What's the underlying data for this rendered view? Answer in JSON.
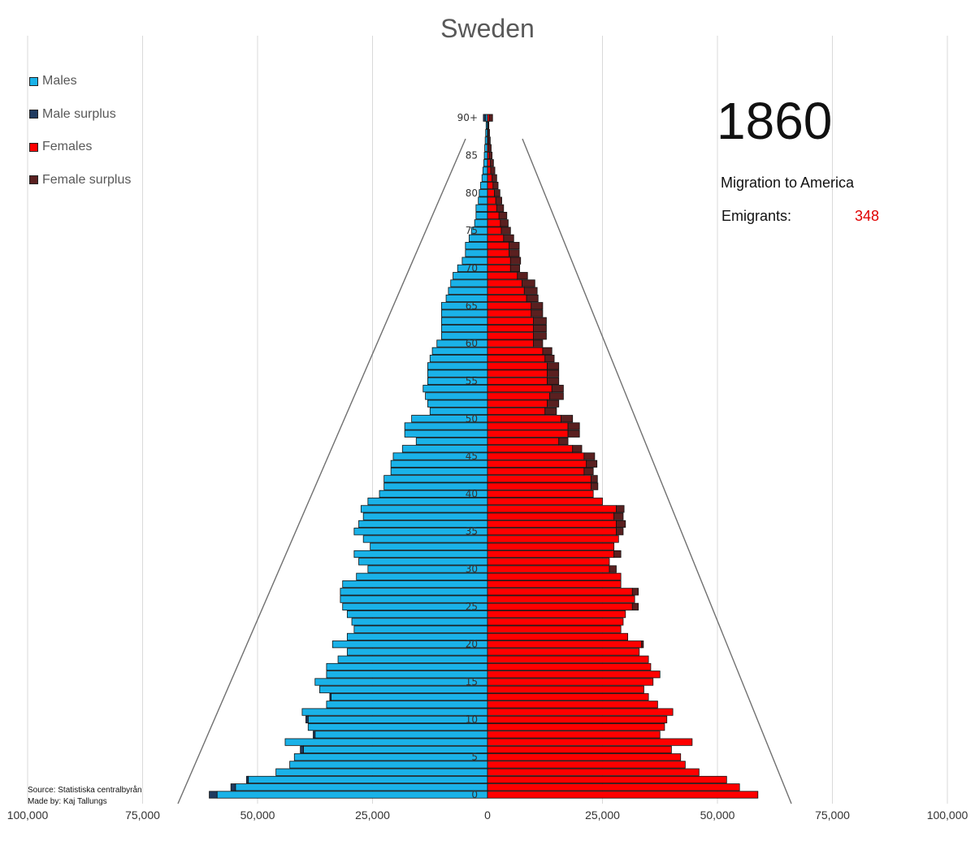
{
  "chart_data": {
    "type": "bar",
    "orientation": "horizontal",
    "title": "Sweden",
    "x_ticks": [
      "100,000",
      "75,000",
      "50,000",
      "25,000",
      "0",
      "25,000",
      "50,000",
      "75,000",
      "100,000"
    ],
    "xlim": [
      -100000,
      100000
    ],
    "y_tick_labels": [
      "0",
      "5",
      "10",
      "15",
      "20",
      "25",
      "30",
      "35",
      "40",
      "45",
      "50",
      "55",
      "60",
      "65",
      "70",
      "75",
      "80",
      "85",
      "90+"
    ],
    "age_groups": [
      "0",
      "1",
      "2",
      "3",
      "4",
      "5",
      "6",
      "7",
      "8",
      "9",
      "10",
      "11",
      "12",
      "13",
      "14",
      "15",
      "16",
      "17",
      "18",
      "19",
      "20",
      "21",
      "22",
      "23",
      "24",
      "25",
      "26",
      "27",
      "28",
      "29",
      "30",
      "31",
      "32",
      "33",
      "34",
      "35",
      "36",
      "37",
      "38",
      "39",
      "40",
      "41",
      "42",
      "43",
      "44",
      "45",
      "46",
      "47",
      "48",
      "49",
      "50",
      "51",
      "52",
      "53",
      "54",
      "55",
      "56",
      "57",
      "58",
      "59",
      "60",
      "61",
      "62",
      "63",
      "64",
      "65",
      "66",
      "67",
      "68",
      "69",
      "70",
      "71",
      "72",
      "73",
      "74",
      "75",
      "76",
      "77",
      "78",
      "79",
      "80",
      "81",
      "82",
      "83",
      "84",
      "85",
      "86",
      "87",
      "88",
      "89",
      "90+"
    ],
    "series": [
      {
        "name": "Males",
        "color": "#1ab2e8",
        "values": [
          58800,
          54800,
          52000,
          46000,
          43000,
          42000,
          40000,
          44000,
          37500,
          39000,
          39000,
          40300,
          35000,
          34000,
          36500,
          37500,
          35000,
          35000,
          32500,
          30500,
          33700,
          30500,
          29000,
          29500,
          30500,
          31500,
          32000,
          32000,
          31500,
          28500,
          26000,
          28000,
          29000,
          25500,
          27000,
          29000,
          28000,
          27000,
          27500,
          26000,
          23500,
          22500,
          22500,
          21000,
          21000,
          20500,
          18500,
          15500,
          18000,
          18000,
          16500,
          12500,
          13000,
          13500,
          14000,
          13000,
          13000,
          13000,
          12500,
          12000,
          11000,
          10000,
          10000,
          10000,
          10000,
          10000,
          9000,
          8500,
          8000,
          7500,
          6500,
          5500,
          4800,
          4800,
          4000,
          3500,
          2800,
          2500,
          2500,
          2000,
          1800,
          1500,
          1200,
          1000,
          800,
          700,
          600,
          500,
          400,
          300,
          400
        ]
      },
      {
        "name": "Male surplus",
        "color": "#1f3a5f",
        "values": [
          1700,
          1000,
          400,
          0,
          0,
          0,
          700,
          0,
          400,
          0,
          500,
          0,
          0,
          300,
          0,
          0,
          0,
          0,
          0,
          0,
          0,
          0,
          0,
          0,
          0,
          0,
          0,
          0,
          0,
          0,
          0,
          0,
          0,
          0,
          0,
          0,
          0,
          0,
          0,
          0,
          0,
          0,
          0,
          0,
          0,
          0,
          0,
          0,
          0,
          0,
          0,
          0,
          0,
          0,
          0,
          0,
          0,
          0,
          0,
          0,
          0,
          0,
          0,
          0,
          0,
          0,
          0,
          0,
          0,
          0,
          0,
          0,
          0,
          0,
          0,
          0,
          0,
          0,
          0,
          0,
          0,
          0,
          0,
          0,
          0,
          0,
          0,
          0,
          0,
          0,
          500
        ]
      },
      {
        "name": "Females",
        "color": "#ff0000",
        "values": [
          58800,
          54800,
          52000,
          46000,
          43000,
          42000,
          40000,
          44500,
          37500,
          38500,
          39000,
          40300,
          37000,
          35000,
          34000,
          36000,
          37500,
          35500,
          35000,
          33000,
          33500,
          30500,
          29000,
          29500,
          30000,
          31500,
          32000,
          31500,
          29000,
          29000,
          26500,
          26500,
          27500,
          27500,
          28500,
          28000,
          28000,
          27500,
          28000,
          25000,
          23000,
          22500,
          22500,
          21000,
          21500,
          21000,
          18500,
          15500,
          17500,
          17500,
          16000,
          12500,
          13000,
          13500,
          14000,
          13000,
          13000,
          13000,
          12500,
          12000,
          10000,
          10000,
          10000,
          10000,
          9500,
          9500,
          8500,
          8000,
          7500,
          6500,
          5000,
          5000,
          4700,
          4700,
          3500,
          3000,
          2800,
          2500,
          2000,
          1800,
          1500,
          1200,
          1000,
          700,
          600,
          400,
          300,
          200,
          150,
          100,
          400
        ]
      },
      {
        "name": "Female surplus",
        "color": "#5a2020",
        "values": [
          0,
          0,
          0,
          0,
          0,
          0,
          0,
          0,
          0,
          0,
          0,
          0,
          0,
          0,
          0,
          0,
          0,
          0,
          0,
          0,
          400,
          0,
          0,
          0,
          0,
          1300,
          0,
          1300,
          0,
          0,
          1500,
          0,
          1500,
          0,
          0,
          1500,
          2000,
          2000,
          1700,
          0,
          0,
          1500,
          1400,
          2000,
          2300,
          2300,
          2000,
          2000,
          2500,
          2500,
          2500,
          2500,
          2500,
          3000,
          2500,
          2500,
          2500,
          2500,
          2000,
          2000,
          2000,
          2800,
          2800,
          2800,
          2500,
          2500,
          2500,
          2800,
          2800,
          2200,
          2000,
          2200,
          2200,
          2200,
          2200,
          2000,
          1700,
          1700,
          1500,
          1300,
          1200,
          1100,
          1000,
          900,
          700,
          600,
          500,
          400,
          300,
          200,
          700
        ]
      }
    ],
    "legend": {
      "placement": "top-left"
    }
  },
  "overlay": {
    "year": "1860",
    "migration_title": "Migration to America",
    "emigrants_label": "Emigrants:",
    "emigrants_value": "348",
    "source": "Source: Statistiska centralbyrån",
    "made_by": "Made by: Kaj Tallungs"
  }
}
